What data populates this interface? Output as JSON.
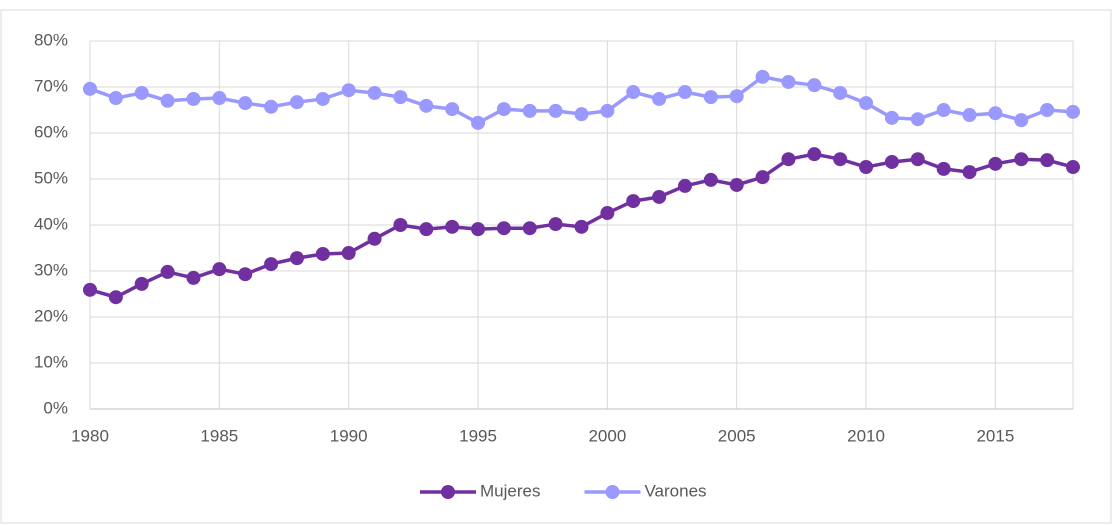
{
  "chart_data": {
    "type": "line",
    "x": [
      1980,
      1981,
      1982,
      1983,
      1984,
      1985,
      1986,
      1987,
      1988,
      1989,
      1990,
      1991,
      1992,
      1993,
      1994,
      1995,
      1996,
      1997,
      1998,
      1999,
      2000,
      2001,
      2002,
      2003,
      2004,
      2005,
      2006,
      2007,
      2008,
      2009,
      2010,
      2011,
      2012,
      2013,
      2014,
      2015,
      2016,
      2017,
      2018
    ],
    "series": [
      {
        "name": "Mujeres",
        "color": "#7030a0",
        "values": [
          25.9,
          24.3,
          27.2,
          29.8,
          28.5,
          30.4,
          29.3,
          31.5,
          32.8,
          33.7,
          33.9,
          37.0,
          40.0,
          39.1,
          39.6,
          39.1,
          39.3,
          39.3,
          40.2,
          39.6,
          42.6,
          45.2,
          46.1,
          48.5,
          49.8,
          48.7,
          50.4,
          54.3,
          55.4,
          54.3,
          52.6,
          53.7,
          54.3,
          52.2,
          51.5,
          53.3,
          54.3,
          54.1,
          52.6
        ]
      },
      {
        "name": "Varones",
        "color": "#9999ff",
        "values": [
          69.6,
          67.6,
          68.7,
          67.0,
          67.4,
          67.6,
          66.5,
          65.7,
          66.7,
          67.4,
          69.3,
          68.7,
          67.8,
          65.9,
          65.2,
          62.2,
          65.2,
          64.8,
          64.8,
          64.1,
          64.8,
          68.9,
          67.4,
          68.9,
          67.8,
          68.0,
          72.2,
          71.1,
          70.4,
          68.7,
          66.5,
          63.3,
          63.0,
          65.0,
          63.9,
          64.3,
          62.8,
          65.0,
          64.6
        ]
      }
    ],
    "xlim": [
      1980,
      2018
    ],
    "xticks": [
      1980,
      1985,
      1990,
      1995,
      2000,
      2005,
      2010,
      2015
    ],
    "ylim": [
      0,
      80
    ],
    "yticks": [
      {
        "value": 0,
        "label": "0%"
      },
      {
        "value": 10,
        "label": "10%"
      },
      {
        "value": 20,
        "label": "20%"
      },
      {
        "value": 30,
        "label": "30%"
      },
      {
        "value": 40,
        "label": "40%"
      },
      {
        "value": 50,
        "label": "50%"
      },
      {
        "value": 60,
        "label": "60%"
      },
      {
        "value": 70,
        "label": "70%"
      },
      {
        "value": 80,
        "label": "80%"
      }
    ],
    "grid": true,
    "legend": "bottom"
  }
}
